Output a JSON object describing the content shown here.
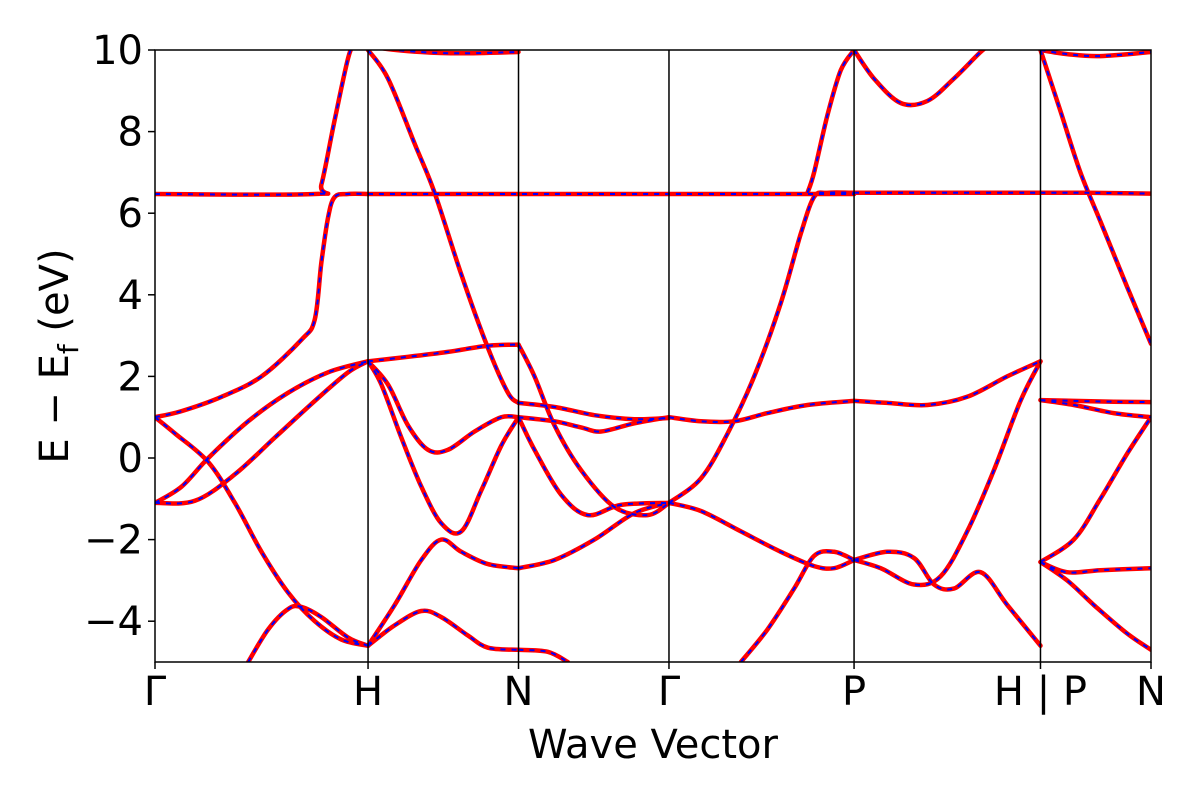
{
  "chart_data": {
    "type": "line",
    "title": "",
    "xlabel": "Wave Vector",
    "ylabel_main": "E − E",
    "ylabel_sub": "f",
    "ylabel_unit": " (eV)",
    "ylim": [
      -5,
      10
    ],
    "yticks": [
      -4,
      -2,
      0,
      2,
      4,
      6,
      8,
      10
    ],
    "ytick_labels": [
      "−4",
      "−2",
      "0",
      "2",
      "4",
      "6",
      "8",
      "10"
    ],
    "xlim": [
      0,
      7.48
    ],
    "kpoints": [
      {
        "label": "Γ",
        "x": 0
      },
      {
        "label": "H",
        "x": 1.6
      },
      {
        "label": "N",
        "x": 2.73
      },
      {
        "label": "Γ",
        "x": 3.86
      },
      {
        "label": "P",
        "x": 5.25
      },
      {
        "label": "H | P",
        "x": 6.65
      },
      {
        "label": "N",
        "x": 7.48
      }
    ],
    "grid": false,
    "line_styles": {
      "primary": "#ff0000",
      "overlay": "#0000ff",
      "overlay_dash": "dashed"
    },
    "bands": [
      {
        "pts": [
          [
            0,
            1.0
          ],
          [
            0.2,
            1.15
          ],
          [
            0.5,
            1.5
          ],
          [
            0.8,
            2.0
          ],
          [
            1.1,
            2.9
          ],
          [
            1.2,
            3.4
          ],
          [
            1.25,
            4.8
          ],
          [
            1.3,
            5.9
          ],
          [
            1.35,
            6.4
          ],
          [
            1.45,
            6.47
          ],
          [
            1.6,
            6.47
          ]
        ]
      },
      {
        "pts": [
          [
            0,
            6.47
          ],
          [
            1.2,
            6.47
          ],
          [
            1.25,
            6.7
          ],
          [
            1.35,
            8.3
          ],
          [
            1.45,
            9.8
          ],
          [
            1.5,
            10.2
          ]
        ]
      },
      {
        "pts": [
          [
            0,
            1.0
          ],
          [
            0.15,
            0.6
          ],
          [
            0.4,
            -0.1
          ],
          [
            0.6,
            -1.1
          ],
          [
            0.8,
            -2.3
          ],
          [
            1.0,
            -3.3
          ],
          [
            1.2,
            -4.0
          ],
          [
            1.4,
            -4.45
          ],
          [
            1.6,
            -4.6
          ]
        ]
      },
      {
        "pts": [
          [
            0,
            -1.1
          ],
          [
            0.2,
            -0.7
          ],
          [
            0.4,
            0.0
          ],
          [
            0.7,
            0.9
          ],
          [
            1.0,
            1.6
          ],
          [
            1.3,
            2.1
          ],
          [
            1.6,
            2.37
          ]
        ]
      },
      {
        "pts": [
          [
            0,
            -1.1
          ],
          [
            0.3,
            -1.05
          ],
          [
            0.6,
            -0.4
          ],
          [
            0.9,
            0.5
          ],
          [
            1.2,
            1.4
          ],
          [
            1.45,
            2.1
          ],
          [
            1.6,
            2.37
          ]
        ]
      },
      {
        "pts": [
          [
            0.7,
            -5.0
          ],
          [
            0.85,
            -4.2
          ],
          [
            1.0,
            -3.7
          ],
          [
            1.1,
            -3.65
          ],
          [
            1.25,
            -3.9
          ],
          [
            1.45,
            -4.4
          ],
          [
            1.6,
            -4.6
          ]
        ]
      },
      {
        "pts": [
          [
            1.6,
            10.0
          ],
          [
            1.75,
            9.3
          ],
          [
            1.95,
            7.7
          ],
          [
            2.1,
            6.5
          ],
          [
            2.3,
            4.5
          ],
          [
            2.5,
            2.7
          ],
          [
            2.65,
            1.6
          ],
          [
            2.73,
            1.35
          ]
        ]
      },
      {
        "pts": [
          [
            1.6,
            6.47
          ],
          [
            2.1,
            6.47
          ],
          [
            2.73,
            6.47
          ],
          [
            3.86,
            6.47
          ],
          [
            4.9,
            6.47
          ],
          [
            5.25,
            6.47
          ]
        ]
      },
      {
        "pts": [
          [
            1.6,
            10.2
          ],
          [
            1.7,
            10.05
          ],
          [
            2.0,
            9.95
          ],
          [
            2.3,
            9.92
          ],
          [
            2.73,
            9.95
          ]
        ]
      },
      {
        "pts": [
          [
            1.6,
            2.37
          ],
          [
            1.9,
            2.48
          ],
          [
            2.2,
            2.6
          ],
          [
            2.5,
            2.75
          ],
          [
            2.73,
            2.78
          ]
        ]
      },
      {
        "pts": [
          [
            1.6,
            2.37
          ],
          [
            1.75,
            1.8
          ],
          [
            1.9,
            0.8
          ],
          [
            2.05,
            0.2
          ],
          [
            2.2,
            0.2
          ],
          [
            2.4,
            0.65
          ],
          [
            2.6,
            1.0
          ],
          [
            2.73,
            1.0
          ]
        ]
      },
      {
        "pts": [
          [
            1.6,
            2.37
          ],
          [
            1.7,
            1.8
          ],
          [
            1.85,
            0.5
          ],
          [
            2.0,
            -0.7
          ],
          [
            2.15,
            -1.6
          ],
          [
            2.3,
            -1.8
          ],
          [
            2.45,
            -0.8
          ],
          [
            2.6,
            0.3
          ],
          [
            2.73,
            1.0
          ]
        ]
      },
      {
        "pts": [
          [
            1.6,
            -4.6
          ],
          [
            1.8,
            -4.1
          ],
          [
            2.0,
            -3.75
          ],
          [
            2.15,
            -3.9
          ],
          [
            2.35,
            -4.35
          ],
          [
            2.5,
            -4.65
          ],
          [
            2.73,
            -4.7
          ]
        ]
      },
      {
        "pts": [
          [
            1.6,
            -4.6
          ],
          [
            1.8,
            -3.6
          ],
          [
            2.0,
            -2.5
          ],
          [
            2.15,
            -2.0
          ],
          [
            2.3,
            -2.3
          ],
          [
            2.5,
            -2.6
          ],
          [
            2.73,
            -2.7
          ]
        ]
      },
      {
        "pts": [
          [
            2.73,
            1.35
          ],
          [
            3.0,
            1.25
          ],
          [
            3.3,
            1.05
          ],
          [
            3.6,
            0.95
          ],
          [
            3.86,
            0.98
          ]
        ]
      },
      {
        "pts": [
          [
            2.73,
            1.0
          ],
          [
            3.0,
            0.9
          ],
          [
            3.2,
            0.75
          ],
          [
            3.35,
            0.65
          ],
          [
            3.6,
            0.85
          ],
          [
            3.86,
            1.0
          ]
        ]
      },
      {
        "pts": [
          [
            2.73,
            2.78
          ],
          [
            2.85,
            2.0
          ],
          [
            3.0,
            0.8
          ],
          [
            3.2,
            -0.3
          ],
          [
            3.45,
            -1.2
          ],
          [
            3.7,
            -1.4
          ],
          [
            3.86,
            -1.1
          ]
        ]
      },
      {
        "pts": [
          [
            2.73,
            1.0
          ],
          [
            2.85,
            0.2
          ],
          [
            3.05,
            -0.9
          ],
          [
            3.25,
            -1.4
          ],
          [
            3.5,
            -1.15
          ],
          [
            3.86,
            -1.1
          ]
        ]
      },
      {
        "pts": [
          [
            2.73,
            -2.7
          ],
          [
            3.0,
            -2.5
          ],
          [
            3.3,
            -2.0
          ],
          [
            3.6,
            -1.35
          ],
          [
            3.86,
            -1.1
          ]
        ]
      },
      {
        "pts": [
          [
            2.73,
            -4.7
          ],
          [
            2.95,
            -4.75
          ],
          [
            3.1,
            -5.0
          ]
        ]
      },
      {
        "pts": [
          [
            3.86,
            1.0
          ],
          [
            4.1,
            0.9
          ],
          [
            4.35,
            0.9
          ],
          [
            4.6,
            1.1
          ],
          [
            4.9,
            1.3
          ],
          [
            5.25,
            1.4
          ]
        ]
      },
      {
        "pts": [
          [
            3.86,
            -1.1
          ],
          [
            4.1,
            -0.5
          ],
          [
            4.3,
            0.6
          ],
          [
            4.5,
            2.0
          ],
          [
            4.7,
            3.8
          ],
          [
            4.85,
            5.5
          ],
          [
            4.95,
            6.4
          ],
          [
            5.05,
            6.5
          ],
          [
            5.25,
            6.5
          ]
        ]
      },
      {
        "pts": [
          [
            3.86,
            -1.1
          ],
          [
            4.1,
            -1.3
          ],
          [
            4.4,
            -1.8
          ],
          [
            4.7,
            -2.3
          ],
          [
            4.95,
            -2.65
          ],
          [
            5.1,
            -2.7
          ],
          [
            5.25,
            -2.5
          ]
        ]
      },
      {
        "pts": [
          [
            4.4,
            -5.0
          ],
          [
            4.6,
            -4.2
          ],
          [
            4.8,
            -3.2
          ],
          [
            4.95,
            -2.4
          ],
          [
            5.1,
            -2.3
          ],
          [
            5.25,
            -2.5
          ]
        ]
      },
      {
        "pts": [
          [
            4.9,
            6.5
          ],
          [
            4.95,
            7.0
          ],
          [
            5.05,
            8.4
          ],
          [
            5.15,
            9.5
          ],
          [
            5.25,
            10.0
          ]
        ]
      },
      {
        "pts": [
          [
            5.25,
            10.0
          ],
          [
            5.4,
            9.3
          ],
          [
            5.6,
            8.7
          ],
          [
            5.8,
            8.75
          ],
          [
            6.0,
            9.3
          ],
          [
            6.2,
            9.95
          ],
          [
            6.3,
            10.2
          ]
        ]
      },
      {
        "pts": [
          [
            5.25,
            1.4
          ],
          [
            5.5,
            1.35
          ],
          [
            5.8,
            1.3
          ],
          [
            6.1,
            1.5
          ],
          [
            6.4,
            2.0
          ],
          [
            6.65,
            2.37
          ]
        ]
      },
      {
        "pts": [
          [
            5.25,
            -2.5
          ],
          [
            5.5,
            -2.3
          ],
          [
            5.7,
            -2.45
          ],
          [
            5.85,
            -3.1
          ],
          [
            6.0,
            -3.2
          ],
          [
            6.2,
            -2.8
          ],
          [
            6.4,
            -3.6
          ],
          [
            6.65,
            -4.6
          ]
        ]
      },
      {
        "pts": [
          [
            5.25,
            -2.5
          ],
          [
            5.45,
            -2.7
          ],
          [
            5.7,
            -3.1
          ],
          [
            5.9,
            -2.9
          ],
          [
            6.1,
            -1.8
          ],
          [
            6.3,
            -0.3
          ],
          [
            6.5,
            1.4
          ],
          [
            6.65,
            2.37
          ]
        ]
      },
      {
        "pts": [
          [
            5.25,
            6.5
          ],
          [
            6.0,
            6.5
          ],
          [
            6.65,
            6.5
          ]
        ]
      },
      {
        "pts": [
          [
            6.65,
            10.0
          ],
          [
            6.85,
            9.9
          ],
          [
            7.1,
            9.85
          ],
          [
            7.48,
            9.95
          ]
        ]
      },
      {
        "pts": [
          [
            6.65,
            10.0
          ],
          [
            6.8,
            8.5
          ],
          [
            6.95,
            7.0
          ],
          [
            7.1,
            5.8
          ],
          [
            7.3,
            4.2
          ],
          [
            7.48,
            2.8
          ]
        ]
      },
      {
        "pts": [
          [
            6.65,
            6.5
          ],
          [
            7.0,
            6.5
          ],
          [
            7.48,
            6.48
          ]
        ]
      },
      {
        "pts": [
          [
            6.65,
            1.42
          ],
          [
            6.9,
            1.4
          ],
          [
            7.2,
            1.38
          ],
          [
            7.48,
            1.37
          ]
        ]
      },
      {
        "pts": [
          [
            6.65,
            1.42
          ],
          [
            6.9,
            1.3
          ],
          [
            7.2,
            1.1
          ],
          [
            7.48,
            1.0
          ]
        ]
      },
      {
        "pts": [
          [
            6.65,
            -2.55
          ],
          [
            6.9,
            -2.0
          ],
          [
            7.1,
            -1.0
          ],
          [
            7.3,
            0.1
          ],
          [
            7.48,
            1.0
          ]
        ]
      },
      {
        "pts": [
          [
            6.65,
            -2.55
          ],
          [
            6.85,
            -2.8
          ],
          [
            7.1,
            -2.75
          ],
          [
            7.48,
            -2.7
          ]
        ]
      },
      {
        "pts": [
          [
            6.65,
            -2.55
          ],
          [
            6.85,
            -3.0
          ],
          [
            7.05,
            -3.6
          ],
          [
            7.3,
            -4.3
          ],
          [
            7.48,
            -4.7
          ]
        ]
      }
    ]
  }
}
